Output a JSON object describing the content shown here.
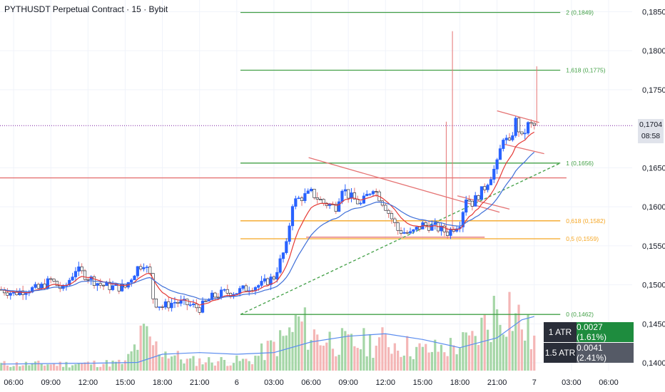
{
  "header": {
    "title": "PYTHUSDT Perpetual Contract · 15 · Bybit"
  },
  "colors": {
    "up": "#26a69a",
    "up_candle": "#2962ff",
    "down": "#e57373",
    "fib_green": "#43a047",
    "fib_orange": "#f5a623",
    "red_line": "#e57373",
    "ema_fast": "#e53935",
    "ema_slow": "#3f6fd8",
    "vol_up": "#a5d6a7",
    "vol_down": "#f4b6b6"
  },
  "chart_data": {
    "type": "candlestick",
    "title": "PYTHUSDT Perpetual Contract · 15 · Bybit",
    "y_ticks": [
      "0,1850",
      "0,1800",
      "0,1750",
      "0,1650",
      "0,1600",
      "0,1550",
      "0,1500",
      "0,1450",
      "0,1400"
    ],
    "y_tick_values": [
      0.185,
      0.18,
      0.175,
      0.165,
      0.16,
      0.155,
      0.15,
      0.145,
      0.14
    ],
    "ylim": [
      0.139,
      0.1865
    ],
    "x_ticks": [
      "06:00",
      "09:00",
      "12:00",
      "15:00",
      "18:00",
      "21:00",
      "6",
      "03:00",
      "06:00",
      "09:00",
      "12:00",
      "15:00",
      "18:00",
      "21:00",
      "7",
      "03:00",
      "06:00"
    ],
    "x_tick_hours": [
      6,
      9,
      12,
      15,
      18,
      21,
      24,
      27,
      30,
      33,
      36,
      39,
      42,
      45,
      48,
      51,
      54
    ],
    "xlim_hours": [
      4.9,
      55.9
    ],
    "current_price": {
      "value": "0,1704",
      "countdown": "08:58",
      "level": 0.1704
    },
    "fib_levels": [
      {
        "label": "2 (0,1849)",
        "value": 0.1849,
        "color": "green"
      },
      {
        "label": "1,618 (0,1775)",
        "value": 0.1775,
        "color": "green"
      },
      {
        "label": "1 (0,1656)",
        "value": 0.1656,
        "color": "green"
      },
      {
        "label": "0,618 (0,1582)",
        "value": 0.1582,
        "color": "orange"
      },
      {
        "label": "0,5 (0,1559)",
        "value": 0.1559,
        "color": "orange"
      },
      {
        "label": "0 (0,1462)",
        "value": 0.1462,
        "color": "green"
      }
    ],
    "resistance_level": 0.1637,
    "price_path": [
      {
        "t": 5.0,
        "p": 0.1494
      },
      {
        "t": 6.0,
        "p": 0.1489
      },
      {
        "t": 7.0,
        "p": 0.1494
      },
      {
        "t": 8.0,
        "p": 0.1495
      },
      {
        "t": 9.0,
        "p": 0.1506
      },
      {
        "t": 10.0,
        "p": 0.1493
      },
      {
        "t": 11.0,
        "p": 0.152
      },
      {
        "t": 12.0,
        "p": 0.151
      },
      {
        "t": 13.0,
        "p": 0.15
      },
      {
        "t": 14.0,
        "p": 0.1497
      },
      {
        "t": 15.0,
        "p": 0.1497
      },
      {
        "t": 16.0,
        "p": 0.1522
      },
      {
        "t": 16.5,
        "p": 0.1528
      },
      {
        "t": 17.0,
        "p": 0.1512
      },
      {
        "t": 17.3,
        "p": 0.1478
      },
      {
        "t": 18.0,
        "p": 0.1472
      },
      {
        "t": 19.0,
        "p": 0.1478
      },
      {
        "t": 20.0,
        "p": 0.1475
      },
      {
        "t": 21.0,
        "p": 0.147
      },
      {
        "t": 22.0,
        "p": 0.1484
      },
      {
        "t": 23.0,
        "p": 0.149
      },
      {
        "t": 24.0,
        "p": 0.1491
      },
      {
        "t": 25.0,
        "p": 0.1497
      },
      {
        "t": 26.0,
        "p": 0.15
      },
      {
        "t": 27.0,
        "p": 0.151
      },
      {
        "t": 28.0,
        "p": 0.155
      },
      {
        "t": 28.5,
        "p": 0.1605
      },
      {
        "t": 29.0,
        "p": 0.161
      },
      {
        "t": 30.0,
        "p": 0.1618
      },
      {
        "t": 31.0,
        "p": 0.1605
      },
      {
        "t": 32.0,
        "p": 0.16
      },
      {
        "t": 32.5,
        "p": 0.1625
      },
      {
        "t": 33.0,
        "p": 0.1615
      },
      {
        "t": 34.0,
        "p": 0.1603
      },
      {
        "t": 35.0,
        "p": 0.1625
      },
      {
        "t": 36.0,
        "p": 0.16
      },
      {
        "t": 37.0,
        "p": 0.157
      },
      {
        "t": 38.0,
        "p": 0.1565
      },
      {
        "t": 39.0,
        "p": 0.1577
      },
      {
        "t": 40.0,
        "p": 0.1574
      },
      {
        "t": 41.0,
        "p": 0.1567
      },
      {
        "t": 42.0,
        "p": 0.158
      },
      {
        "t": 42.5,
        "p": 0.1612
      },
      {
        "t": 43.0,
        "p": 0.1605
      },
      {
        "t": 44.0,
        "p": 0.1625
      },
      {
        "t": 45.0,
        "p": 0.1655
      },
      {
        "t": 45.5,
        "p": 0.169
      },
      {
        "t": 46.0,
        "p": 0.168
      },
      {
        "t": 46.5,
        "p": 0.171
      },
      {
        "t": 47.0,
        "p": 0.1688
      },
      {
        "t": 47.5,
        "p": 0.1705
      },
      {
        "t": 48.0,
        "p": 0.1704
      }
    ],
    "spikes": [
      {
        "t": 40.9,
        "high": 0.1709
      },
      {
        "t": 41.4,
        "high": 0.1825
      },
      {
        "t": 48.2,
        "high": 0.178
      }
    ],
    "pattern_lines": [
      {
        "from": {
          "t": 29.8,
          "p": 0.1663
        },
        "to": {
          "t": 45.2,
          "p": 0.1593
        },
        "color": "red",
        "dash": false
      },
      {
        "from": {
          "t": 41.8,
          "p": 0.1614
        },
        "to": {
          "t": 46.0,
          "p": 0.1597
        },
        "color": "red",
        "dash": false
      },
      {
        "from": {
          "t": 45.0,
          "p": 0.1723
        },
        "to": {
          "t": 48.4,
          "p": 0.1708
        },
        "color": "red",
        "dash": false
      },
      {
        "from": {
          "t": 45.6,
          "p": 0.168
        },
        "to": {
          "t": 48.8,
          "p": 0.1668
        },
        "color": "red",
        "dash": false
      },
      {
        "from": {
          "t": 29.6,
          "p": 0.1561
        },
        "to": {
          "t": 44.0,
          "p": 0.1561
        },
        "color": "red",
        "dash": false
      },
      {
        "from": {
          "t": 24.3,
          "p": 0.1462
        },
        "to": {
          "t": 50.1,
          "p": 0.1656
        },
        "color": "green",
        "dash": true
      }
    ],
    "volume_profile": [
      {
        "t": 5,
        "v": 0.1
      },
      {
        "t": 10,
        "v": 0.1
      },
      {
        "t": 15,
        "v": 0.12
      },
      {
        "t": 16.5,
        "v": 0.55
      },
      {
        "t": 17.5,
        "v": 0.35
      },
      {
        "t": 20,
        "v": 0.15
      },
      {
        "t": 25,
        "v": 0.15
      },
      {
        "t": 28,
        "v": 0.5
      },
      {
        "t": 29,
        "v": 0.75
      },
      {
        "t": 30,
        "v": 0.55
      },
      {
        "t": 33,
        "v": 0.4
      },
      {
        "t": 36,
        "v": 0.45
      },
      {
        "t": 39,
        "v": 0.3
      },
      {
        "t": 41,
        "v": 0.35
      },
      {
        "t": 43,
        "v": 0.45
      },
      {
        "t": 45,
        "v": 0.95
      },
      {
        "t": 46,
        "v": 1.0
      },
      {
        "t": 47,
        "v": 0.7
      },
      {
        "t": 48,
        "v": 0.45
      }
    ],
    "volume_ma": [
      {
        "t": 5,
        "v": 0.08
      },
      {
        "t": 12,
        "v": 0.09
      },
      {
        "t": 16,
        "v": 0.1
      },
      {
        "t": 18,
        "v": 0.2
      },
      {
        "t": 21,
        "v": 0.22
      },
      {
        "t": 24,
        "v": 0.2
      },
      {
        "t": 27,
        "v": 0.22
      },
      {
        "t": 30,
        "v": 0.35
      },
      {
        "t": 33,
        "v": 0.42
      },
      {
        "t": 36,
        "v": 0.45
      },
      {
        "t": 39,
        "v": 0.38
      },
      {
        "t": 42,
        "v": 0.28
      },
      {
        "t": 45,
        "v": 0.4
      },
      {
        "t": 47,
        "v": 0.62
      },
      {
        "t": 48,
        "v": 0.66
      }
    ]
  },
  "atr": [
    {
      "label": "1 ATR",
      "value": "0.0027 (1.61%)",
      "color": "#1e8c3e"
    },
    {
      "label": "1.5 ATR",
      "value": "0.0041 (2.41%)",
      "color": "#555a66"
    }
  ]
}
